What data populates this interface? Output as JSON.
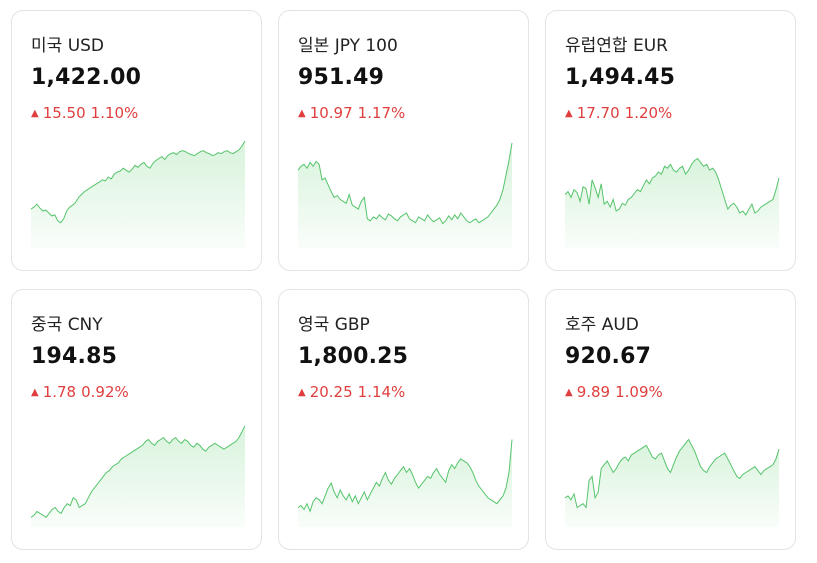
{
  "theme": {
    "up_color": "#e03e3e",
    "line_color": "#56c46b",
    "fill_color": "#d8f3dc"
  },
  "currencies": [
    {
      "country": "미국",
      "code": "USD",
      "rate": "1,422.00",
      "direction": "up",
      "change": "15.50",
      "percent": "1.10%",
      "spark": [
        40,
        42,
        45,
        41,
        38,
        39,
        36,
        33,
        34,
        28,
        26,
        30,
        38,
        42,
        44,
        47,
        52,
        55,
        58,
        60,
        62,
        64,
        66,
        68,
        70,
        69,
        73,
        71,
        76,
        78,
        79,
        82,
        80,
        78,
        81,
        85,
        83,
        86,
        88,
        84,
        82,
        87,
        90,
        92,
        94,
        91,
        95,
        97,
        98,
        96,
        99,
        100,
        99,
        97,
        96,
        95,
        97,
        99,
        100,
        98,
        97,
        95,
        96,
        98,
        97,
        99,
        100,
        98,
        97,
        99,
        101,
        105,
        110
      ]
    },
    {
      "country": "일본",
      "code": "JPY 100",
      "rate": "951.49",
      "direction": "up",
      "change": "10.97",
      "percent": "1.17%",
      "spark": [
        80,
        84,
        86,
        82,
        88,
        84,
        89,
        86,
        70,
        72,
        65,
        58,
        52,
        54,
        50,
        48,
        46,
        55,
        44,
        42,
        40,
        48,
        52,
        30,
        28,
        32,
        30,
        34,
        31,
        29,
        35,
        33,
        30,
        28,
        32,
        34,
        36,
        30,
        28,
        26,
        32,
        30,
        28,
        34,
        30,
        27,
        29,
        31,
        25,
        28,
        33,
        29,
        34,
        30,
        36,
        32,
        28,
        26,
        28,
        30,
        26,
        28,
        30,
        32,
        36,
        40,
        44,
        50,
        60,
        75,
        90,
        108
      ]
    },
    {
      "country": "유럽연합",
      "code": "EUR",
      "rate": "1,494.45",
      "direction": "up",
      "change": "17.70",
      "percent": "1.20%",
      "spark": [
        55,
        58,
        52,
        60,
        57,
        48,
        63,
        61,
        45,
        70,
        62,
        52,
        66,
        45,
        48,
        42,
        50,
        38,
        40,
        46,
        44,
        50,
        52,
        56,
        60,
        58,
        64,
        70,
        66,
        72,
        74,
        78,
        76,
        84,
        82,
        86,
        80,
        78,
        82,
        84,
        76,
        80,
        86,
        90,
        92,
        88,
        84,
        86,
        80,
        82,
        78,
        70,
        60,
        50,
        40,
        44,
        46,
        42,
        36,
        38,
        34,
        40,
        45,
        36,
        38,
        42,
        44,
        46,
        48,
        50,
        60,
        72
      ]
    },
    {
      "country": "중국",
      "code": "CNY",
      "rate": "194.85",
      "direction": "up",
      "change": "1.78",
      "percent": "0.92%",
      "spark": [
        10,
        12,
        16,
        14,
        12,
        10,
        14,
        18,
        20,
        16,
        14,
        20,
        24,
        22,
        30,
        28,
        20,
        22,
        24,
        30,
        36,
        40,
        44,
        48,
        52,
        56,
        58,
        62,
        64,
        66,
        70,
        72,
        74,
        76,
        78,
        80,
        82,
        84,
        88,
        90,
        86,
        84,
        88,
        90,
        92,
        88,
        86,
        90,
        92,
        88,
        86,
        90,
        88,
        84,
        82,
        86,
        84,
        80,
        78,
        82,
        84,
        86,
        84,
        82,
        80,
        82,
        84,
        86,
        88,
        92,
        98,
        104
      ]
    },
    {
      "country": "영국",
      "code": "GBP",
      "rate": "1,800.25",
      "direction": "up",
      "change": "20.25",
      "percent": "1.14%",
      "spark": [
        20,
        22,
        18,
        24,
        16,
        26,
        30,
        28,
        24,
        32,
        40,
        45,
        36,
        30,
        38,
        32,
        28,
        34,
        26,
        32,
        24,
        30,
        36,
        28,
        34,
        40,
        46,
        42,
        50,
        56,
        48,
        44,
        50,
        54,
        58,
        62,
        56,
        60,
        54,
        46,
        40,
        44,
        48,
        52,
        50,
        56,
        60,
        54,
        50,
        46,
        58,
        64,
        60,
        66,
        70,
        68,
        66,
        62,
        56,
        48,
        42,
        38,
        34,
        30,
        28,
        26,
        24,
        28,
        32,
        40,
        56,
        90
      ]
    },
    {
      "country": "호주",
      "code": "AUD",
      "rate": "920.67",
      "direction": "up",
      "change": "9.89",
      "percent": "1.09%",
      "spark": [
        30,
        32,
        28,
        34,
        20,
        22,
        24,
        20,
        48,
        52,
        30,
        36,
        60,
        64,
        68,
        62,
        56,
        60,
        66,
        70,
        72,
        68,
        74,
        76,
        78,
        80,
        82,
        84,
        78,
        72,
        70,
        74,
        76,
        68,
        60,
        56,
        64,
        72,
        78,
        82,
        86,
        90,
        84,
        78,
        70,
        62,
        58,
        56,
        62,
        66,
        70,
        72,
        74,
        76,
        70,
        64,
        58,
        52,
        50,
        54,
        56,
        58,
        60,
        62,
        58,
        54,
        58,
        60,
        62,
        64,
        70,
        80
      ]
    }
  ]
}
